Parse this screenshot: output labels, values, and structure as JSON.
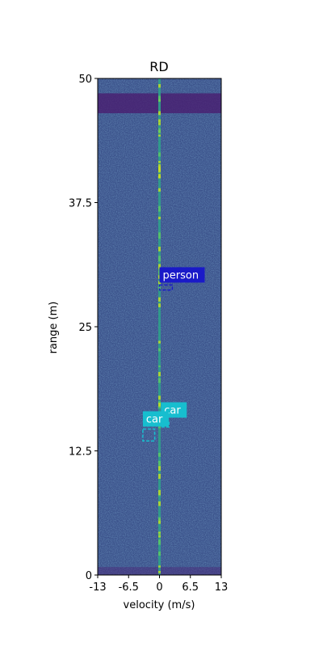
{
  "chart_data": {
    "type": "heatmap",
    "title": "RD",
    "xlabel": "velocity (m/s)",
    "ylabel": "range (m)",
    "xlim": [
      -13,
      13
    ],
    "ylim": [
      0,
      50
    ],
    "x_ticks": [
      {
        "value": -13,
        "label": "-13"
      },
      {
        "value": -6.5,
        "label": "-6.5"
      },
      {
        "value": 0,
        "label": "0"
      },
      {
        "value": 6.5,
        "label": "6.5"
      },
      {
        "value": 13,
        "label": "13"
      }
    ],
    "y_ticks": [
      {
        "value": 0,
        "label": "0"
      },
      {
        "value": 12.5,
        "label": "12.5"
      },
      {
        "value": 25,
        "label": "25"
      },
      {
        "value": 37.5,
        "label": "37.5"
      },
      {
        "value": 50,
        "label": "50"
      }
    ],
    "colormap": "viridis",
    "background_color": "#3b528b",
    "detections": [
      {
        "label": "person",
        "color": "#1a1ac8",
        "vmin": 0,
        "vmax": 2.7,
        "rmin": 28.7,
        "rmax": 29.2
      },
      {
        "label": "car",
        "color": "#17becf",
        "vmin": 0.3,
        "vmax": 2.0,
        "rmin": 14.9,
        "rmax": 15.6
      },
      {
        "label": "car",
        "color": "#17becf",
        "vmin": -3.5,
        "vmax": -1.0,
        "rmin": 13.5,
        "rmax": 14.7
      }
    ]
  }
}
